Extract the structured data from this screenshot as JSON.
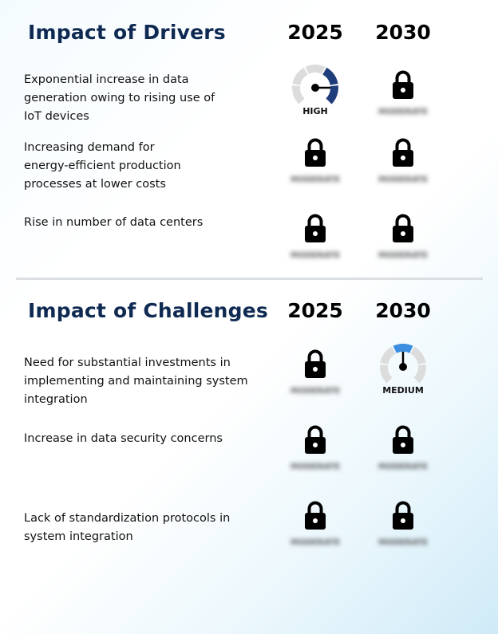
{
  "drivers": {
    "title": "Impact of Drivers",
    "years": [
      "2025",
      "2030"
    ],
    "rows": [
      {
        "text": "Exponential increase in data generation owing to rising use of IoT devices",
        "y2025": {
          "type": "gauge",
          "label": "HIGH",
          "level": "high",
          "color": "#1f3d7a"
        },
        "y2030": {
          "type": "lock",
          "label": "MODERATE"
        }
      },
      {
        "text": "Increasing demand for energy-efficient production processes at lower costs",
        "y2025": {
          "type": "lock",
          "label": "MODERATE"
        },
        "y2030": {
          "type": "lock",
          "label": "MODERATE"
        }
      },
      {
        "text": "Rise in number of data centers",
        "y2025": {
          "type": "lock",
          "label": "MODERATE"
        },
        "y2030": {
          "type": "lock",
          "label": "MODERATE"
        }
      }
    ]
  },
  "challenges": {
    "title": "Impact of Challenges",
    "years": [
      "2025",
      "2030"
    ],
    "rows": [
      {
        "text": "Need for substantial investments in implementing and maintaining system integration",
        "y2025": {
          "type": "lock",
          "label": "MODERATE"
        },
        "y2030": {
          "type": "gauge",
          "label": "MEDIUM",
          "level": "medium",
          "color": "#3b8ee0"
        }
      },
      {
        "text": "Increase in data security concerns",
        "y2025": {
          "type": "lock",
          "label": "MODERATE"
        },
        "y2030": {
          "type": "lock",
          "label": "MODERATE"
        }
      },
      {
        "text": "Lack of standardization protocols in system integration",
        "y2025": {
          "type": "lock",
          "label": "MODERATE"
        },
        "y2030": {
          "type": "lock",
          "label": "MODERATE"
        }
      }
    ]
  },
  "icons": {
    "lock": "lock-icon",
    "gauge": "gauge-icon"
  }
}
